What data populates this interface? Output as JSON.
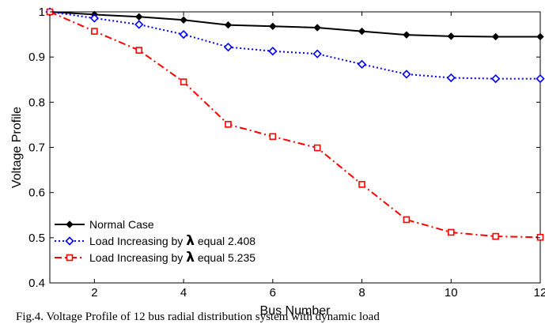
{
  "caption": "Fig.4. Voltage Profile of 12 bus radial distribution system with dynamic load",
  "chart_data": {
    "type": "line",
    "xlabel": "Bus Number",
    "ylabel": "Voltage Profile",
    "xlim": [
      1,
      12
    ],
    "ylim": [
      0.4,
      1.0
    ],
    "xticks": [
      2,
      4,
      6,
      8,
      10,
      12
    ],
    "yticks": [
      0.4,
      0.5,
      0.6,
      0.7,
      0.8,
      0.9,
      1
    ],
    "grid": false,
    "legend_position": "bottom-left",
    "x": [
      1,
      2,
      3,
      4,
      5,
      6,
      7,
      8,
      9,
      10,
      11,
      12
    ],
    "series": [
      {
        "name": "Normal Case",
        "legend": {
          "pre": "Normal Case",
          "lambda": "",
          "post": ""
        },
        "color": "#000000",
        "linestyle": "solid",
        "marker": "diamond-filled",
        "values": [
          1.0,
          0.994,
          0.989,
          0.982,
          0.971,
          0.968,
          0.965,
          0.957,
          0.949,
          0.946,
          0.945,
          0.945
        ]
      },
      {
        "name": "Load Increasing by λ equal 2.408",
        "legend": {
          "pre": "Load Increasing by ",
          "lambda": "λ",
          "post": " equal 2.408"
        },
        "color": "#0000ff",
        "linestyle": "dotted",
        "marker": "diamond-open",
        "values": [
          1.0,
          0.986,
          0.972,
          0.95,
          0.922,
          0.913,
          0.907,
          0.884,
          0.862,
          0.854,
          0.852,
          0.852
        ]
      },
      {
        "name": "Load Increasing by λ equal 5.235",
        "legend": {
          "pre": "Load Increasing by ",
          "lambda": "λ",
          "post": " equal 5.235"
        },
        "color": "#ff0000",
        "linestyle": "dashdot",
        "marker": "square-open",
        "values": [
          1.0,
          0.957,
          0.915,
          0.845,
          0.751,
          0.724,
          0.699,
          0.618,
          0.54,
          0.512,
          0.503,
          0.501
        ]
      }
    ]
  }
}
